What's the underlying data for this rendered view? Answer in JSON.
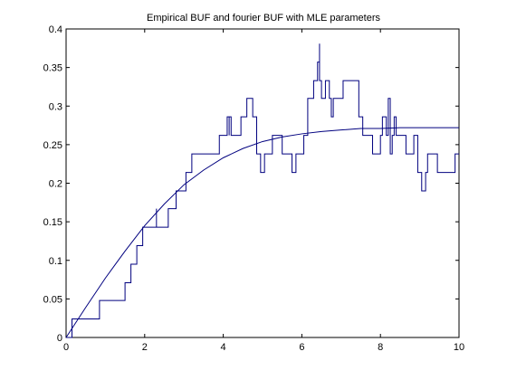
{
  "chart_data": {
    "type": "line",
    "title": "Empirical BUF and fourier BUF with MLE parameters",
    "xlabel": "",
    "ylabel": "",
    "xlim": [
      0,
      10
    ],
    "ylim": [
      0,
      0.4
    ],
    "x_ticks": [
      "0",
      "2",
      "4",
      "6",
      "8",
      "10"
    ],
    "y_ticks": [
      "0",
      "0.05",
      "0.1",
      "0.15",
      "0.2",
      "0.25",
      "0.3",
      "0.35",
      "0.4"
    ],
    "grid": false,
    "line_color": "#00007f",
    "series": [
      {
        "kind": "step",
        "x": [
          0,
          0.15,
          0.85,
          1.5,
          1.65,
          1.8,
          1.95,
          2.05,
          2.3,
          2.3,
          2.3,
          2.3,
          2.6,
          2.8,
          3.05,
          3.2,
          3.35,
          3.6,
          3.9,
          4.1,
          4.15,
          4.15,
          4.2,
          4.45,
          4.6,
          4.75,
          4.85,
          4.95,
          5.05,
          5.25,
          5.35,
          5.5,
          5.75,
          5.85,
          6.05,
          6.15,
          6.3,
          6.4,
          6.45,
          6.45,
          6.5,
          6.6,
          6.7,
          6.75,
          6.8,
          7.05,
          7.3,
          7.45,
          7.55,
          7.8,
          8.0,
          8.05,
          8.15,
          8.2,
          8.25,
          8.3,
          8.35,
          8.4,
          8.45,
          8.65,
          8.85,
          8.9,
          8.95,
          9.05,
          9.15,
          9.2,
          9.3,
          9.45,
          9.6,
          9.75,
          9.9,
          10.0
        ],
        "y": [
          0,
          0.024,
          0.048,
          0.071,
          0.095,
          0.119,
          0.143,
          0.143,
          0.167,
          0.143,
          0.167,
          0.143,
          0.167,
          0.19,
          0.214,
          0.238,
          0.238,
          0.238,
          0.262,
          0.286,
          0.262,
          0.286,
          0.262,
          0.286,
          0.31,
          0.286,
          0.238,
          0.214,
          0.238,
          0.262,
          0.262,
          0.238,
          0.214,
          0.238,
          0.262,
          0.31,
          0.333,
          0.357,
          0.381,
          0.333,
          0.31,
          0.333,
          0.31,
          0.286,
          0.31,
          0.333,
          0.333,
          0.286,
          0.262,
          0.238,
          0.262,
          0.286,
          0.262,
          0.31,
          0.238,
          0.262,
          0.286,
          0.262,
          0.262,
          0.238,
          0.262,
          0.262,
          0.214,
          0.19,
          0.214,
          0.238,
          0.238,
          0.214,
          0.214,
          0.214,
          0.238,
          0.238
        ]
      },
      {
        "kind": "smooth",
        "x": [
          0,
          0.5,
          1,
          1.5,
          2,
          2.5,
          3,
          3.5,
          4,
          4.5,
          5,
          5.5,
          6,
          6.5,
          7,
          7.5,
          8,
          8.5,
          9,
          9.5,
          10
        ],
        "y": [
          0,
          0.039,
          0.077,
          0.112,
          0.145,
          0.173,
          0.198,
          0.217,
          0.233,
          0.245,
          0.254,
          0.26,
          0.264,
          0.267,
          0.269,
          0.271,
          0.271,
          0.272,
          0.272,
          0.272,
          0.272
        ]
      }
    ]
  }
}
